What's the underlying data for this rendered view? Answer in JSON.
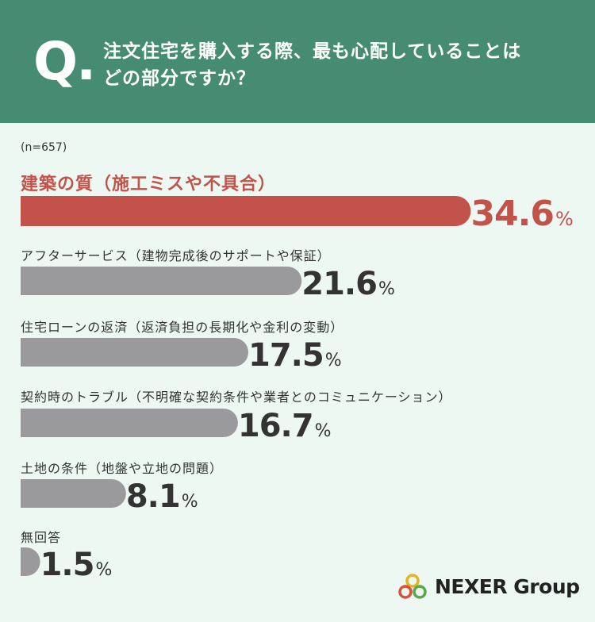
{
  "header": {
    "q_mark": "Q.",
    "question_line1": "注文住宅を購入する際、最も心配していることは",
    "question_line2": "どの部分ですか？"
  },
  "sample": "(n=657)",
  "brand": {
    "name": "NEXER Group",
    "logo_icon": "three-ring-logo-icon"
  },
  "colors": {
    "header_bg": "#468c73",
    "highlight": "#c2524a",
    "bar": "#9a9a9c",
    "background": "#edf8f3"
  },
  "chart_data": {
    "type": "bar",
    "orientation": "horizontal",
    "unit": "%",
    "categories": [
      "建築の質（施工ミスや不具合）",
      "アフターサービス（建物完成後のサポートや保証）",
      "住宅ローンの返済（返済負担の長期化や金利の変動）",
      "契約時のトラブル（不明確な契約条件や業者とのコミュニケーション）",
      "土地の条件（地盤や立地の問題）",
      "無回答"
    ],
    "values": [
      34.6,
      21.6,
      17.5,
      16.7,
      8.1,
      1.5
    ],
    "value_labels": [
      "34.6",
      "21.6",
      "17.5",
      "16.7",
      "8.1",
      "1.5"
    ],
    "highlight_index": 0
  }
}
